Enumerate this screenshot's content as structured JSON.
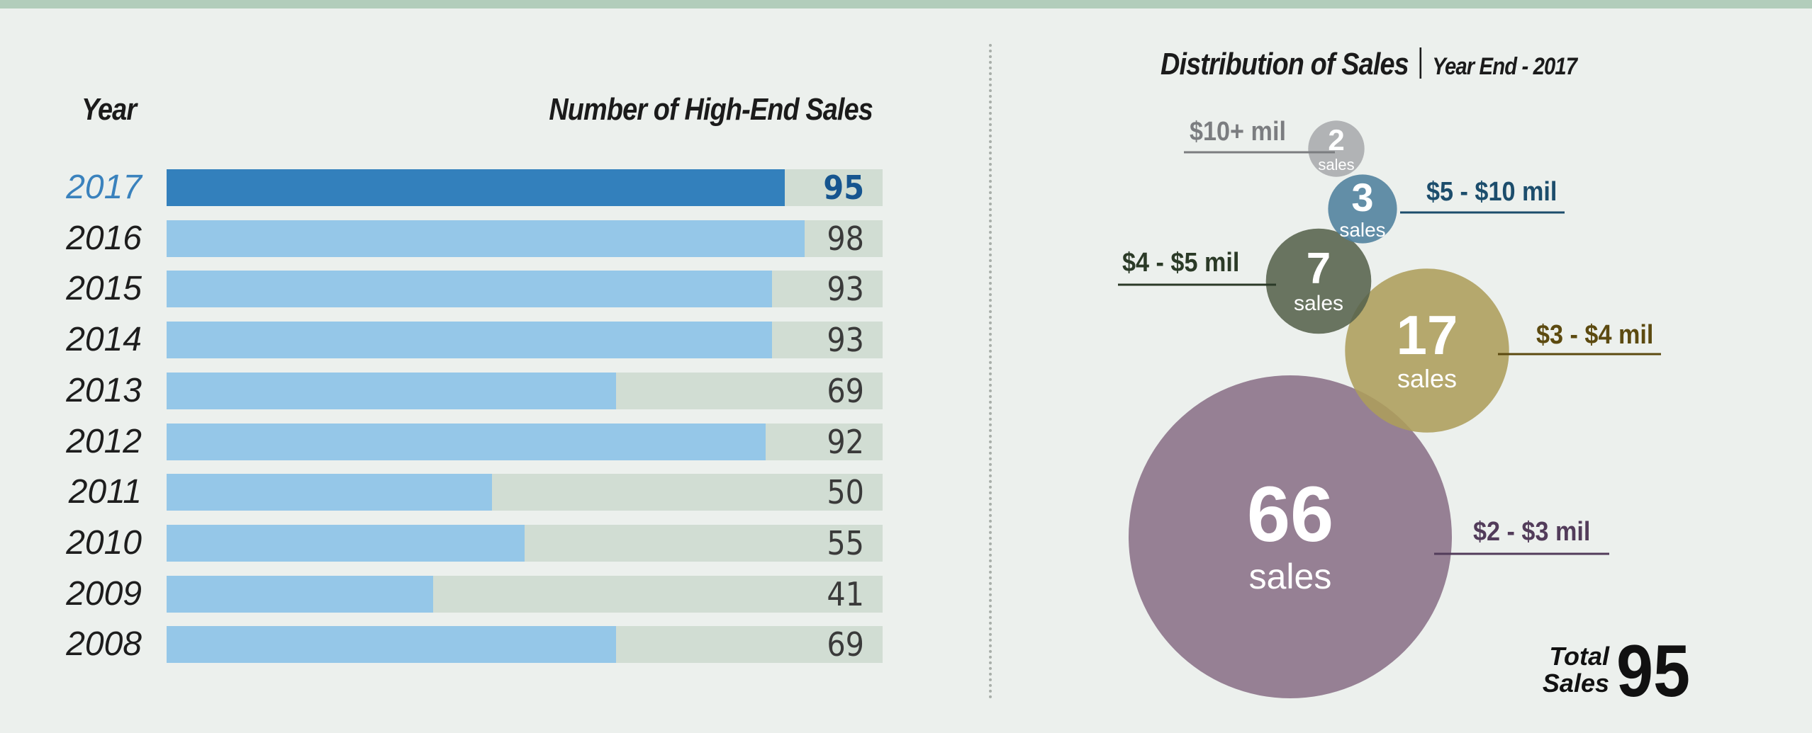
{
  "chart_data": [
    {
      "type": "bar",
      "xlabel": "Year",
      "ylabel": "Number of High-End Sales",
      "categories": [
        "2017",
        "2016",
        "2015",
        "2014",
        "2013",
        "2012",
        "2011",
        "2010",
        "2009",
        "2008"
      ],
      "values": [
        95,
        98,
        93,
        93,
        69,
        92,
        50,
        55,
        41,
        69
      ],
      "ylim": [
        0,
        110
      ],
      "highlight": "2017",
      "colors": {
        "highlight": "#3380bc",
        "bar": "#95c7e8",
        "track": "#d1ddd3",
        "highlight_text": "#16558f"
      }
    },
    {
      "type": "bubble",
      "title": "Distribution of Sales",
      "subtitle": "Year End - 2017",
      "unit_label": "sales",
      "series": [
        {
          "name": "$10+ mil",
          "value": 2,
          "color": "#a9aaad",
          "label_color": "#7b7d80"
        },
        {
          "name": "$5 - $10 mil",
          "value": 3,
          "color": "#4e7f9d",
          "label_color": "#1c4d6c"
        },
        {
          "name": "$4 - $5 mil",
          "value": 7,
          "color": "#56624c",
          "label_color": "#2b3a27"
        },
        {
          "name": "$3 - $4 mil",
          "value": 17,
          "color": "#ad9d5b",
          "label_color": "#5c4a10"
        },
        {
          "name": "$2 - $3 mil",
          "value": 66,
          "color": "#8a7088",
          "label_color": "#523c5a"
        }
      ],
      "total_label_line1": "Total",
      "total_label_line2": "Sales",
      "total": 95
    }
  ]
}
